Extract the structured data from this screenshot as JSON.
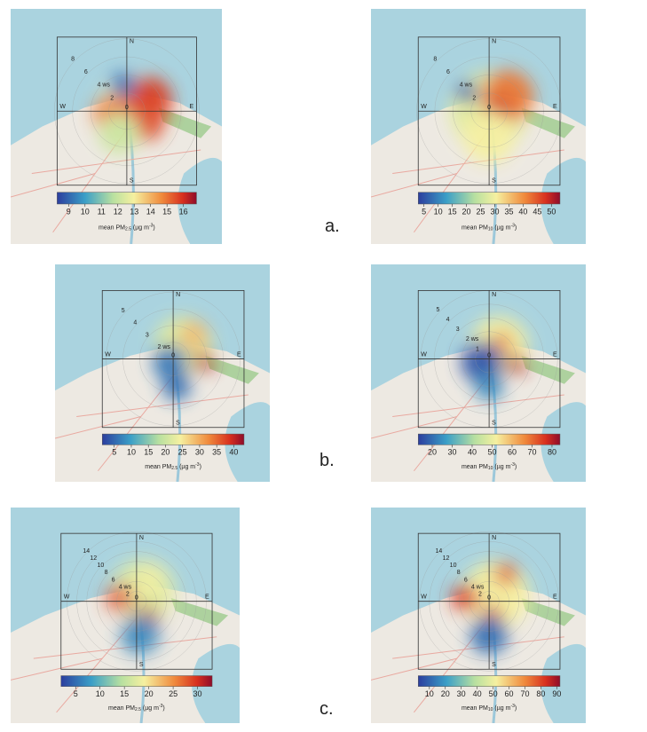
{
  "figure": {
    "rows": [
      {
        "label": "a.",
        "panels": [
          {
            "compass": {
              "n": "N",
              "e": "E",
              "s": "S",
              "w": "W"
            },
            "origin": "0",
            "rings": [
              "8",
              "6",
              "4 ws",
              "2"
            ],
            "colorbar": {
              "clim": [
                8.3,
                16.8
              ],
              "ticks": [
                9,
                10,
                11,
                12,
                13,
                14,
                15,
                16
              ],
              "label": {
                "prefix": "mean PM",
                "sub": "2.5",
                "unit": " (µg m",
                "sup": "-3",
                "close": ")"
              }
            }
          },
          {
            "compass": {
              "n": "N",
              "e": "E",
              "s": "S",
              "w": "W"
            },
            "origin": "0",
            "rings": [
              "8",
              "6",
              "4 ws",
              "2"
            ],
            "colorbar": {
              "clim": [
                3,
                53
              ],
              "ticks": [
                5,
                10,
                15,
                20,
                25,
                30,
                35,
                40,
                45,
                50
              ],
              "label": {
                "prefix": "mean PM",
                "sub": "10",
                "unit": " (µg m",
                "sup": "-3",
                "close": ")"
              }
            }
          }
        ]
      },
      {
        "label": "b.",
        "panels": [
          {
            "compass": {
              "n": "N",
              "e": "E",
              "s": "S",
              "w": "W"
            },
            "origin": "0",
            "rings": [
              "5",
              "4",
              "3",
              "2 ws"
            ],
            "colorbar": {
              "clim": [
                1.5,
                43
              ],
              "ticks": [
                5,
                10,
                15,
                20,
                25,
                30,
                35,
                40
              ],
              "label": {
                "prefix": "mean PM",
                "sub": "2.5",
                "unit": " (µg m",
                "sup": "-3",
                "close": ")"
              }
            }
          },
          {
            "compass": {
              "n": "N",
              "e": "E",
              "s": "S",
              "w": "W"
            },
            "origin": "0",
            "rings": [
              "5",
              "4",
              "3",
              "2 ws",
              "1"
            ],
            "colorbar": {
              "clim": [
                13,
                84
              ],
              "ticks": [
                20,
                30,
                40,
                50,
                60,
                70,
                80
              ],
              "label": {
                "prefix": "mean PM",
                "sub": "10",
                "unit": " (µg m",
                "sup": "-3",
                "close": ")"
              }
            }
          }
        ]
      },
      {
        "label": "c.",
        "panels": [
          {
            "compass": {
              "n": "N",
              "e": "E",
              "s": "S",
              "w": "W"
            },
            "origin": "0",
            "rings": [
              "14",
              "12",
              "10",
              "8",
              "6",
              "4 ws",
              "2"
            ],
            "colorbar": {
              "clim": [
                2,
                33
              ],
              "ticks": [
                5,
                10,
                15,
                20,
                25,
                30
              ],
              "label": {
                "prefix": "mean PM",
                "sub": "2.5",
                "unit": " (µg m",
                "sup": "-3",
                "close": ")"
              }
            }
          },
          {
            "compass": {
              "n": "N",
              "e": "E",
              "s": "S",
              "w": "W"
            },
            "origin": "0",
            "rings": [
              "14",
              "12",
              "10",
              "8",
              "6",
              "4 ws",
              "2"
            ],
            "colorbar": {
              "clim": [
                3,
                92
              ],
              "ticks": [
                10,
                20,
                30,
                40,
                50,
                60,
                70,
                80,
                90
              ],
              "label": {
                "prefix": "mean PM",
                "sub": "10",
                "unit": " (µg m",
                "sup": "-3",
                "close": ")"
              }
            }
          }
        ]
      }
    ]
  }
}
